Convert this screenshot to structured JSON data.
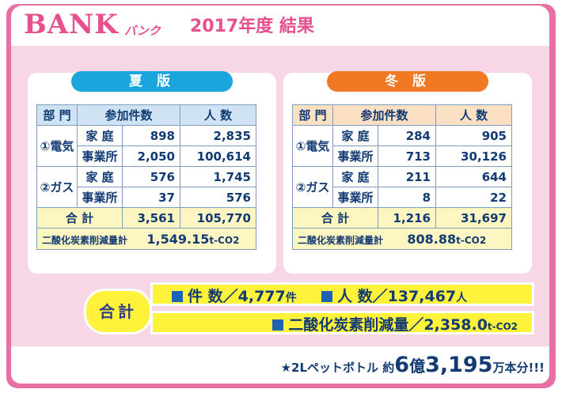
{
  "header": {
    "brand": "BANK",
    "brand_kana": "バンク",
    "title": "2017年度 結果"
  },
  "colors": {
    "frame": "#e86fa3",
    "summer": "#1aa6dd",
    "winter": "#f07a24",
    "highlight": "#fff23a"
  },
  "tables": {
    "summer": {
      "title": "夏 版",
      "headers": [
        "部 門",
        "参加件数",
        "人 数"
      ],
      "rows": [
        {
          "category": "①電気",
          "sub": "家 庭",
          "count": "898",
          "people": "2,835"
        },
        {
          "sub": "事業所",
          "count": "2,050",
          "people": "100,614"
        },
        {
          "category": "②ガス",
          "sub": "家 庭",
          "count": "576",
          "people": "1,745"
        },
        {
          "sub": "事業所",
          "count": "37",
          "people": "576"
        }
      ],
      "total_label": "合 計",
      "total_count": "3,561",
      "total_people": "105,770",
      "co2_label": "二酸化炭素削減量計",
      "co2_value": "1,549.15",
      "co2_unit": "t-CO2"
    },
    "winter": {
      "title": "冬 版",
      "headers": [
        "部 門",
        "参加件数",
        "人 数"
      ],
      "rows": [
        {
          "category": "①電気",
          "sub": "家 庭",
          "count": "284",
          "people": "905"
        },
        {
          "sub": "事業所",
          "count": "713",
          "people": "30,126"
        },
        {
          "category": "②ガス",
          "sub": "家 庭",
          "count": "211",
          "people": "644"
        },
        {
          "sub": "事業所",
          "count": "8",
          "people": "22"
        }
      ],
      "total_label": "合 計",
      "total_count": "1,216",
      "total_people": "31,697",
      "co2_label": "二酸化炭素削減量計",
      "co2_value": "808.88",
      "co2_unit": "t-CO2"
    }
  },
  "summary": {
    "label": "合計",
    "count_label": "件 数／",
    "count_value": "4,777",
    "count_unit": "件",
    "people_label": "人 数／",
    "people_value": "137,467",
    "people_unit": "人",
    "co2_label": "二酸化炭素削減量／",
    "co2_value": "2,358.0",
    "co2_unit": "t-CO2"
  },
  "footnote": {
    "prefix": "★2Lペットボトル 約",
    "big1": "6",
    "mid1": "億",
    "big2": "3,195",
    "suffix": "万本分!!!"
  }
}
